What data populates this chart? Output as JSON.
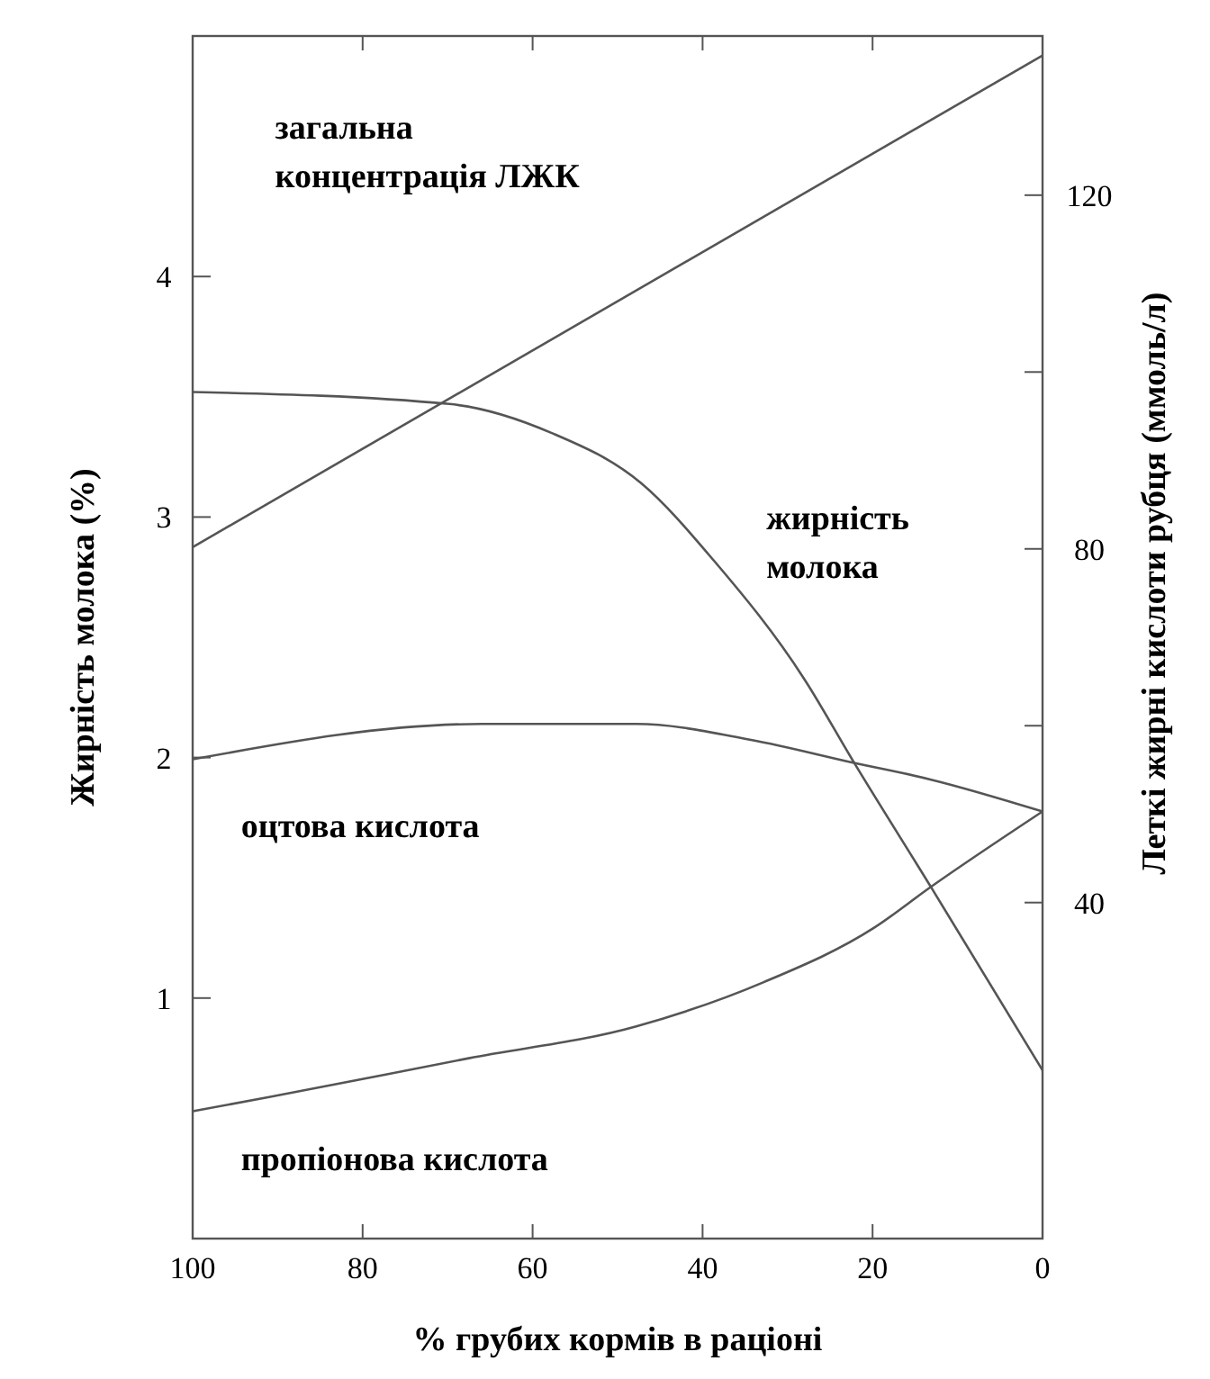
{
  "chart_data": {
    "type": "line",
    "xlabel": "%  грубих кормів в раціоні",
    "ylabel": "Жирність молока (%)",
    "y2label": "Леткі жирні кислоти рубця (ммоль/л)",
    "xlim": [
      100,
      0
    ],
    "xticks": [
      100,
      80,
      60,
      40,
      20,
      0
    ],
    "ylim": [
      0,
      5
    ],
    "yticks": [
      1,
      2,
      3,
      4
    ],
    "y2lim": [
      2,
      138
    ],
    "y2ticks": [
      40,
      {
        "value": 60,
        "label": null
      },
      80,
      {
        "value": 100,
        "label": null
      },
      120
    ],
    "grid": false,
    "line_style": "solid",
    "series": [
      {
        "color": "#555555",
        "axis": "y2",
        "x": [
          100,
          0
        ],
        "values": [
          80.2,
          135.8
        ]
      },
      {
        "color": "#555555",
        "x": [
          100,
          69.8,
          57.8,
          47.2,
          38.7,
          28.1,
          22.2,
          13.1,
          0
        ],
        "values": [
          3.52,
          3.47,
          3.35,
          3.14,
          2.82,
          2.33,
          1.98,
          1.46,
          0.7
        ]
      },
      {
        "color": "#555555",
        "axis": "y2",
        "x": [
          100,
          66,
          47.8,
          34.3,
          22.2,
          13.1,
          0
        ],
        "values": [
          56.2,
          60.2,
          60.2,
          58.4,
          55.8,
          53.9,
          50.3
        ]
      },
      {
        "color": "#555555",
        "axis": "y2",
        "x": [
          100,
          91,
          67.5,
          47.8,
          32.8,
          19.9,
          13.1,
          0
        ],
        "values": [
          16.4,
          18.0,
          22.4,
          26.0,
          31.0,
          37.1,
          41.8,
          50.3
        ]
      }
    ],
    "annotations": [
      "загальна\nконцентрація ЛЖК",
      "жирність\nмолока",
      "оцтова кислота",
      "пропіонова кислота"
    ]
  }
}
